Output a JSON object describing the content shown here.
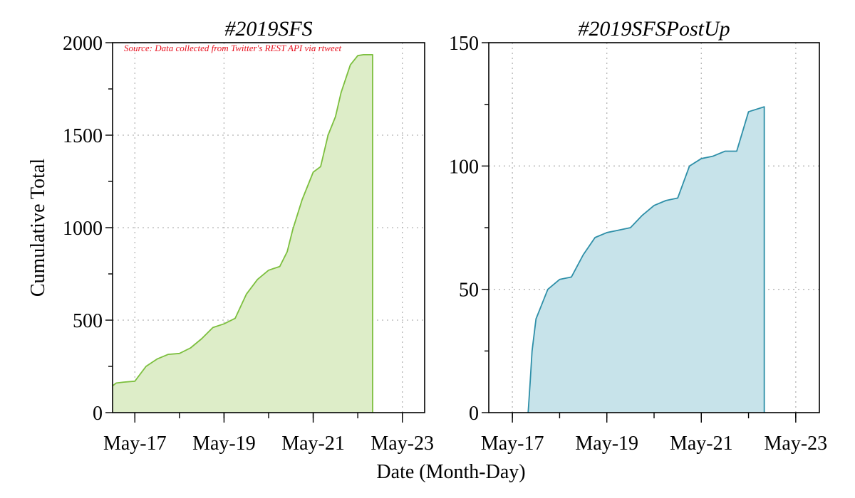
{
  "chart_data": [
    {
      "type": "area",
      "title": "#2019SFS",
      "ylabel": "Cumulative Total",
      "annotation": "Source: Data collected from Twitter's REST API via rtweet",
      "color": "#7cbf3e",
      "fill": "#ddedc8",
      "xlim": [
        "2019-05-16 12:00",
        "2019-05-23 12:00"
      ],
      "ylim": [
        0,
        2000
      ],
      "xticks": [
        "2019-05-17",
        "2019-05-19",
        "2019-05-21",
        "2019-05-23"
      ],
      "xtick_labels": [
        "May-17",
        "May-19",
        "May-21",
        "May-23"
      ],
      "yticks": [
        0,
        500,
        1000,
        1500,
        2000
      ],
      "ytick_labels": [
        "0",
        "500",
        "1000",
        "1500",
        "2000"
      ],
      "grid": true,
      "series": [
        {
          "x": [
            "2019-05-16 12:00",
            "2019-05-16 14:00",
            "2019-05-16 18:00",
            "2019-05-17 00:00",
            "2019-05-17 06:00",
            "2019-05-17 12:00",
            "2019-05-17 18:00",
            "2019-05-18 00:00",
            "2019-05-18 06:00",
            "2019-05-18 12:00",
            "2019-05-18 18:00",
            "2019-05-19 00:00",
            "2019-05-19 06:00",
            "2019-05-19 12:00",
            "2019-05-19 18:00",
            "2019-05-20 00:00",
            "2019-05-20 06:00",
            "2019-05-20 10:00",
            "2019-05-20 13:00",
            "2019-05-20 18:00",
            "2019-05-20 20:00",
            "2019-05-20 22:00",
            "2019-05-21 00:00",
            "2019-05-21 04:00",
            "2019-05-21 08:00",
            "2019-05-21 12:00",
            "2019-05-21 15:00",
            "2019-05-21 18:00",
            "2019-05-21 20:00",
            "2019-05-22 00:00",
            "2019-05-22 03:00",
            "2019-05-22 06:00",
            "2019-05-22 08:00"
          ],
          "values": [
            145,
            160,
            165,
            170,
            250,
            290,
            315,
            320,
            350,
            400,
            460,
            480,
            510,
            640,
            720,
            770,
            790,
            870,
            990,
            1150,
            1200,
            1250,
            1300,
            1330,
            1500,
            1600,
            1730,
            1820,
            1880,
            1930,
            1935,
            1935,
            1935
          ]
        }
      ]
    },
    {
      "type": "area",
      "title": "#2019SFSPostUp",
      "color": "#2e8fa8",
      "fill": "#c7e3ea",
      "xlim": [
        "2019-05-16 12:00",
        "2019-05-23 12:00"
      ],
      "ylim": [
        0,
        150
      ],
      "xticks": [
        "2019-05-17",
        "2019-05-19",
        "2019-05-21",
        "2019-05-23"
      ],
      "xtick_labels": [
        "May-17",
        "May-19",
        "May-21",
        "May-23"
      ],
      "yticks": [
        0,
        50,
        100,
        150
      ],
      "ytick_labels": [
        "0",
        "50",
        "100",
        "150"
      ],
      "grid": true,
      "series": [
        {
          "x": [
            "2019-05-17 08:00",
            "2019-05-17 09:00",
            "2019-05-17 10:00",
            "2019-05-17 12:00",
            "2019-05-17 14:00",
            "2019-05-17 18:00",
            "2019-05-18 00:00",
            "2019-05-18 06:00",
            "2019-05-18 12:00",
            "2019-05-18 18:00",
            "2019-05-19 00:00",
            "2019-05-19 06:00",
            "2019-05-19 12:00",
            "2019-05-19 18:00",
            "2019-05-20 00:00",
            "2019-05-20 06:00",
            "2019-05-20 12:00",
            "2019-05-20 18:00",
            "2019-05-21 00:00",
            "2019-05-21 06:00",
            "2019-05-21 12:00",
            "2019-05-21 18:00",
            "2019-05-22 00:00",
            "2019-05-22 08:00"
          ],
          "values": [
            0,
            12,
            25,
            38,
            42,
            50,
            54,
            55,
            64,
            71,
            73,
            74,
            75,
            80,
            84,
            86,
            87,
            100,
            103,
            104,
            106,
            106,
            122,
            124
          ]
        }
      ]
    }
  ],
  "shared": {
    "xlabel": "Date (Month-Day)"
  }
}
